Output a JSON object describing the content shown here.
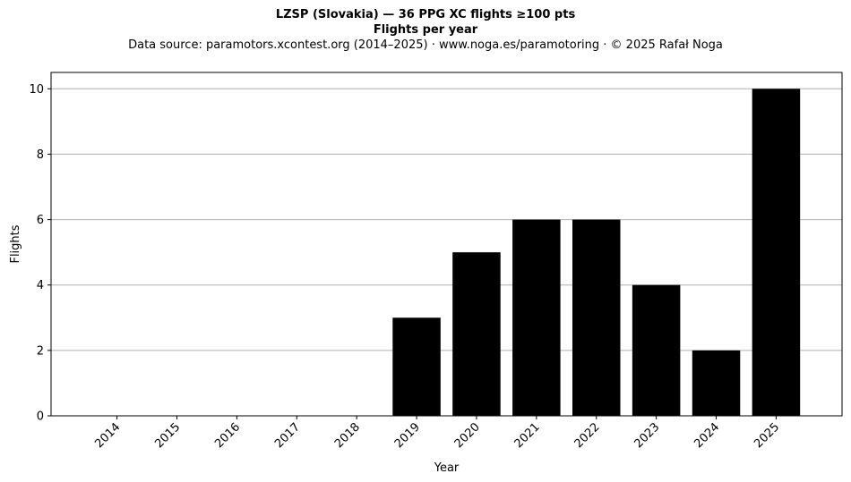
{
  "chart_data": {
    "type": "bar",
    "title": "LZSP (Slovakia)  —  36 PPG XC flights ≥100 pts",
    "subtitle": "Flights per year",
    "source_note": "Data source: paramotors.xcontest.org (2014–2025)  ·  www.noga.es/paramotoring  ·  © 2025 Rafał Noga",
    "xlabel": "Year",
    "ylabel": "Flights",
    "categories": [
      "2014",
      "2015",
      "2016",
      "2017",
      "2018",
      "2019",
      "2020",
      "2021",
      "2022",
      "2023",
      "2024",
      "2025"
    ],
    "values": [
      0,
      0,
      0,
      0,
      0,
      3,
      5,
      6,
      6,
      4,
      2,
      10
    ],
    "ylim": [
      0,
      10.5
    ],
    "yticks": [
      0,
      2,
      4,
      6,
      8,
      10
    ],
    "grid": "horizontal",
    "bar_color": "#000000",
    "grid_color": "#b0b0b0"
  }
}
